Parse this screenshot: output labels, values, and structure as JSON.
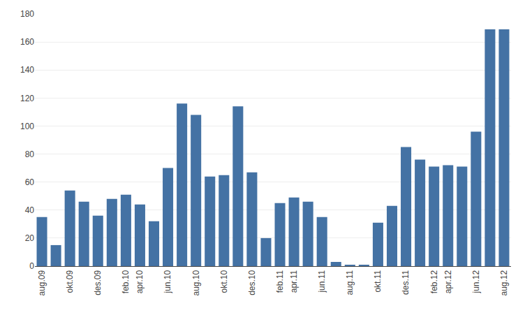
{
  "chart_data": {
    "type": "bar",
    "categories": [
      "aug.09",
      null,
      "okt.09",
      null,
      "des.09",
      null,
      "feb.10",
      "apr.10",
      null,
      "jun.10",
      null,
      "aug.10",
      null,
      "okt.10",
      null,
      "des.10",
      null,
      "feb.11",
      "apr.11",
      null,
      "jun.11",
      null,
      "aug.11",
      null,
      "okt.11",
      null,
      "des.11",
      null,
      "feb.12",
      "apr.12",
      null,
      "jun.12",
      null,
      "aug.12"
    ],
    "values": [
      35,
      15,
      54,
      46,
      36,
      48,
      51,
      44,
      32,
      70,
      116,
      108,
      64,
      65,
      114,
      67,
      20,
      45,
      49,
      46,
      35,
      3,
      1,
      1,
      31,
      43,
      85,
      76,
      71,
      72,
      71,
      96,
      169,
      169
    ],
    "color": "#4472a4",
    "ylim": [
      0,
      180
    ],
    "yticks": [
      0,
      20,
      40,
      60,
      80,
      100,
      120,
      140,
      160,
      180
    ],
    "grid": true
  }
}
